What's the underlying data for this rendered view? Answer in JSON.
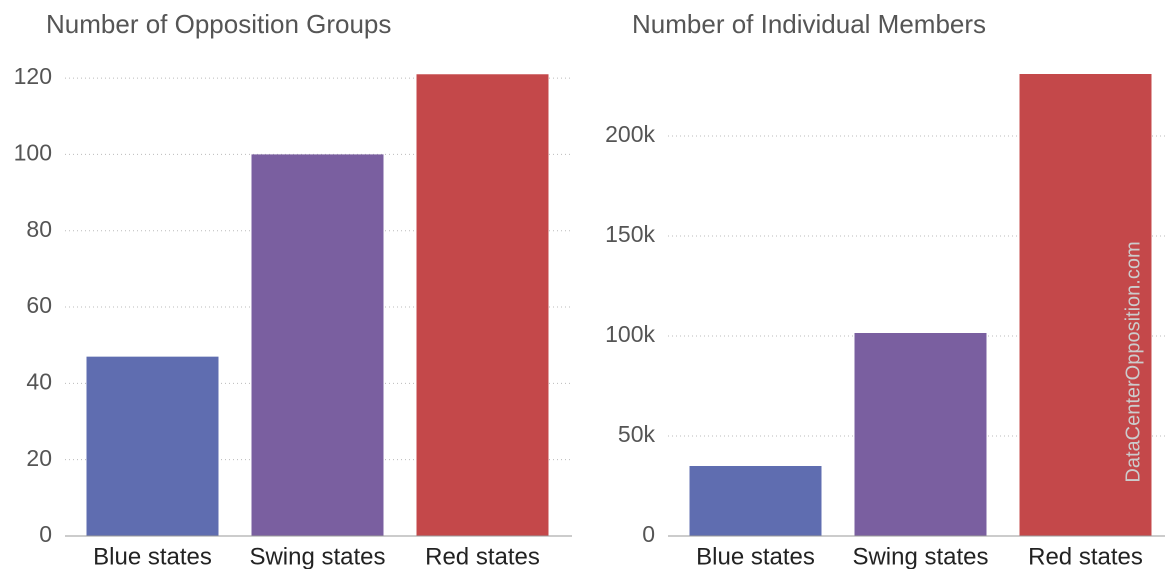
{
  "chart_data": [
    {
      "type": "bar",
      "title": "Number of Opposition Groups",
      "categories": [
        "Blue states",
        "Swing states",
        "Red states"
      ],
      "values": [
        47,
        100,
        121
      ],
      "colors": [
        "#5f6db0",
        "#7a5fa0",
        "#c4484a"
      ],
      "ylim": [
        0,
        125
      ],
      "yticks": [
        0,
        20,
        40,
        60,
        80,
        100,
        120
      ],
      "grid": true
    },
    {
      "type": "bar",
      "title": "Number of Individual Members",
      "categories": [
        "Blue states",
        "Swing states",
        "Red states"
      ],
      "values": [
        35000,
        101500,
        231000
      ],
      "colors": [
        "#5f6db0",
        "#7a5fa0",
        "#c4484a"
      ],
      "ylim": [
        0,
        235000
      ],
      "yticks": [
        0,
        {
          "value": 50000,
          "label": "50k"
        },
        {
          "value": 100000,
          "label": "100k"
        },
        {
          "value": 150000,
          "label": "150k"
        },
        {
          "value": 200000,
          "label": "200k"
        }
      ],
      "grid": true,
      "watermark": "DataCenterOpposition.com"
    }
  ]
}
